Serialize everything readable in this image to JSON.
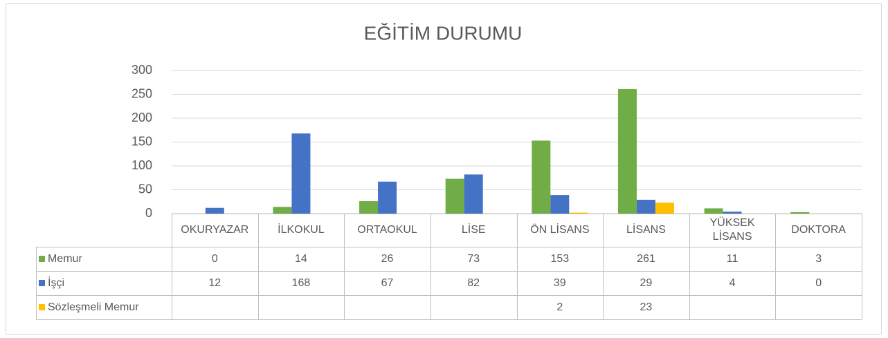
{
  "chart_data": {
    "type": "bar",
    "title": "EĞİTİM DURUMU",
    "categories": [
      "OKURYAZAR",
      "İLKOKUL",
      "ORTAOKUL",
      "LİSE",
      "ÖN LİSANS",
      "LİSANS",
      "YÜKSEK LİSANS",
      "DOKTORA"
    ],
    "series": [
      {
        "name": "Memur",
        "color": "#70ad47",
        "values": [
          0,
          14,
          26,
          73,
          153,
          261,
          11,
          3
        ]
      },
      {
        "name": "İşçi",
        "color": "#4472c4",
        "values": [
          12,
          168,
          67,
          82,
          39,
          29,
          4,
          0
        ]
      },
      {
        "name": "Sözleşmeli Memur",
        "color": "#ffc000",
        "values": [
          null,
          null,
          null,
          null,
          2,
          23,
          null,
          null
        ]
      }
    ],
    "ylim": [
      0,
      300
    ],
    "yticks": [
      0,
      50,
      100,
      150,
      200,
      250,
      300
    ],
    "grid": true,
    "data_table": true
  }
}
